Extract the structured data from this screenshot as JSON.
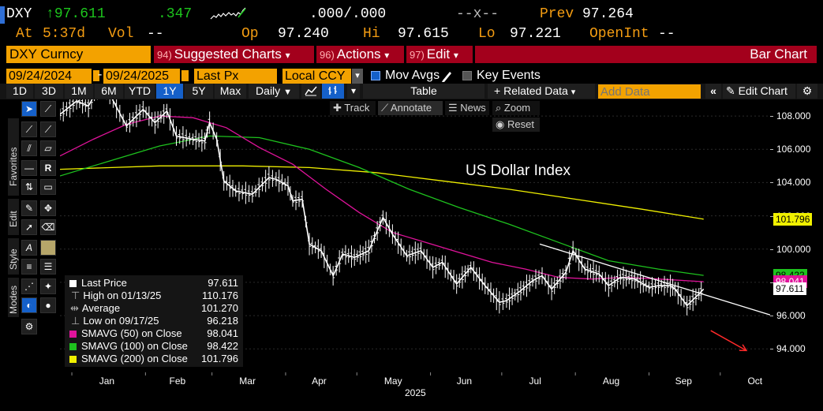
{
  "header": {
    "ticker": "DXY",
    "arrow": "↑",
    "last": "97.611",
    "change": ".347",
    "bid": ".000",
    "ask": ".000",
    "sep": "/",
    "mid": "--x--",
    "prev_label": "Prev",
    "prev": "97.264",
    "at_label": "At",
    "time": "5:37d",
    "vol_label": "Vol",
    "vol": "--",
    "op_label": "Op",
    "op": "97.240",
    "hi_label": "Hi",
    "hi": "97.615",
    "lo_label": "Lo",
    "lo": "97.221",
    "oi_label": "OpenInt",
    "oi": "--"
  },
  "commandbar": {
    "security": "DXY Curncy",
    "suggested_num": "94)",
    "suggested": "Suggested Charts",
    "actions_num": "96)",
    "actions": "Actions",
    "edit_num": "97)",
    "edit": "Edit",
    "chart_type": "Bar Chart",
    "caret": "▾"
  },
  "settings": {
    "start_date": "09/24/2024",
    "dash": "-",
    "end_date": "09/24/2025",
    "field": "Last Px",
    "currency": "Local CCY",
    "mov_avgs": "Mov Avgs",
    "key_events": "Key Events"
  },
  "toolbar": {
    "ranges": [
      "1D",
      "3D",
      "1M",
      "6M",
      "YTD",
      "1Y",
      "5Y",
      "Max"
    ],
    "selected_range": "1Y",
    "period": "Daily",
    "table": "Table",
    "related": "Related Data",
    "add_data_placeholder": "Add Data",
    "edit_chart": "Edit Chart"
  },
  "chart_controls": {
    "track": "Track",
    "annotate": "Annotate",
    "news": "News",
    "zoom": "Zoom",
    "reset": "Reset"
  },
  "sidebar": {
    "favorites": "Favorites",
    "edit": "Edit",
    "style": "Style",
    "modes": "Modes"
  },
  "legend": [
    {
      "label": "Last Price",
      "value": "97.611",
      "color": "#ffffff"
    },
    {
      "label": "High on 01/13/25",
      "value": "110.176",
      "color": ""
    },
    {
      "label": "Average",
      "value": "101.270",
      "color": ""
    },
    {
      "label": "Low on 09/17/25",
      "value": "96.218",
      "color": ""
    },
    {
      "label": "SMAVG (50)  on Close",
      "value": "98.041",
      "color": "#e0139b"
    },
    {
      "label": "SMAVG (100)  on Close",
      "value": "98.422",
      "color": "#1ec21e"
    },
    {
      "label": "SMAVG (200)  on Close",
      "value": "101.796",
      "color": "#f0f000"
    }
  ],
  "chart_data": {
    "type": "line",
    "title": "US Dollar Index",
    "year_label": "2025",
    "x_labels": [
      "Jan",
      "Feb",
      "Mar",
      "Apr",
      "May",
      "Jun",
      "Jul",
      "Aug",
      "Sep",
      "Oct"
    ],
    "y_ticks": [
      "108.000",
      "106.000",
      "104.000",
      "102.000",
      "100.000",
      "98.000",
      "96.000",
      "94.000"
    ],
    "ylim": [
      92.4,
      109.0
    ],
    "right_tags": [
      {
        "text": "101.796",
        "value": 101.796,
        "bg": "#f0f000",
        "fg": "#000000"
      },
      {
        "text": "98.422",
        "value": 98.422,
        "bg": "#1ec21e",
        "fg": "#000000"
      },
      {
        "text": "98.041",
        "value": 98.041,
        "bg": "#e0139b",
        "fg": "#ffffff"
      },
      {
        "text": "97.611",
        "value": 97.611,
        "bg": "#ffffff",
        "fg": "#000000"
      }
    ],
    "series": [
      {
        "name": "Last Price",
        "color": "#ffffff",
        "points": [
          [
            "2024-12-27",
            108.1
          ],
          [
            "2025-01-03",
            108.9
          ],
          [
            "2025-01-08",
            108.6
          ],
          [
            "2025-01-13",
            109.9
          ],
          [
            "2025-01-17",
            109.3
          ],
          [
            "2025-01-24",
            107.4
          ],
          [
            "2025-01-31",
            108.4
          ],
          [
            "2025-02-05",
            107.6
          ],
          [
            "2025-02-10",
            108.3
          ],
          [
            "2025-02-14",
            106.8
          ],
          [
            "2025-02-21",
            106.6
          ],
          [
            "2025-02-26",
            106.5
          ],
          [
            "2025-02-28",
            107.6
          ],
          [
            "2025-03-03",
            106.6
          ],
          [
            "2025-03-06",
            104.1
          ],
          [
            "2025-03-11",
            103.5
          ],
          [
            "2025-03-18",
            103.3
          ],
          [
            "2025-03-25",
            104.3
          ],
          [
            "2025-03-28",
            104.2
          ],
          [
            "2025-04-02",
            103.8
          ],
          [
            "2025-04-04",
            102.9
          ],
          [
            "2025-04-08",
            103.0
          ],
          [
            "2025-04-11",
            100.3
          ],
          [
            "2025-04-16",
            99.9
          ],
          [
            "2025-04-21",
            98.4
          ],
          [
            "2025-04-25",
            99.7
          ],
          [
            "2025-04-30",
            99.5
          ],
          [
            "2025-05-06",
            99.9
          ],
          [
            "2025-05-12",
            101.9
          ],
          [
            "2025-05-16",
            100.9
          ],
          [
            "2025-05-22",
            99.6
          ],
          [
            "2025-05-28",
            99.9
          ],
          [
            "2025-06-02",
            98.9
          ],
          [
            "2025-06-06",
            99.2
          ],
          [
            "2025-06-12",
            97.9
          ],
          [
            "2025-06-18",
            98.9
          ],
          [
            "2025-06-24",
            97.8
          ],
          [
            "2025-06-30",
            96.8
          ],
          [
            "2025-07-03",
            96.9
          ],
          [
            "2025-07-09",
            97.5
          ],
          [
            "2025-07-14",
            98.1
          ],
          [
            "2025-07-18",
            98.4
          ],
          [
            "2025-07-22",
            97.6
          ],
          [
            "2025-07-28",
            98.6
          ],
          [
            "2025-07-31",
            99.9
          ],
          [
            "2025-08-05",
            98.8
          ],
          [
            "2025-08-11",
            98.5
          ],
          [
            "2025-08-15",
            97.8
          ],
          [
            "2025-08-20",
            98.3
          ],
          [
            "2025-08-26",
            98.2
          ],
          [
            "2025-09-01",
            97.7
          ],
          [
            "2025-09-05",
            97.8
          ],
          [
            "2025-09-10",
            97.8
          ],
          [
            "2025-09-12",
            97.6
          ],
          [
            "2025-09-17",
            96.6
          ],
          [
            "2025-09-22",
            97.3
          ],
          [
            "2025-09-24",
            97.6
          ]
        ]
      },
      {
        "name": "SMAVG (50)  on Close",
        "color": "#e0139b",
        "points": [
          [
            "2024-12-27",
            105.6
          ],
          [
            "2025-01-10",
            106.6
          ],
          [
            "2025-01-24",
            107.5
          ],
          [
            "2025-02-07",
            108.0
          ],
          [
            "2025-02-21",
            107.9
          ],
          [
            "2025-03-07",
            107.3
          ],
          [
            "2025-03-21",
            106.1
          ],
          [
            "2025-04-04",
            105.1
          ],
          [
            "2025-04-18",
            103.6
          ],
          [
            "2025-05-02",
            102.2
          ],
          [
            "2025-05-16",
            101.0
          ],
          [
            "2025-05-30",
            100.4
          ],
          [
            "2025-06-13",
            99.8
          ],
          [
            "2025-06-27",
            99.2
          ],
          [
            "2025-07-11",
            98.8
          ],
          [
            "2025-07-25",
            98.3
          ],
          [
            "2025-08-08",
            98.2
          ],
          [
            "2025-08-22",
            98.3
          ],
          [
            "2025-09-05",
            98.2
          ],
          [
            "2025-09-24",
            98.04
          ]
        ]
      },
      {
        "name": "SMAVG (100)  on Close",
        "color": "#1ec21e",
        "points": [
          [
            "2024-12-27",
            104.4
          ],
          [
            "2025-01-17",
            105.3
          ],
          [
            "2025-02-07",
            106.2
          ],
          [
            "2025-02-28",
            106.8
          ],
          [
            "2025-03-21",
            106.7
          ],
          [
            "2025-04-11",
            106.0
          ],
          [
            "2025-05-02",
            104.9
          ],
          [
            "2025-05-23",
            103.6
          ],
          [
            "2025-06-13",
            102.5
          ],
          [
            "2025-07-04",
            101.5
          ],
          [
            "2025-07-25",
            100.4
          ],
          [
            "2025-08-15",
            99.3
          ],
          [
            "2025-09-05",
            98.8
          ],
          [
            "2025-09-24",
            98.42
          ]
        ]
      },
      {
        "name": "SMAVG (200)  on Close",
        "color": "#f0f000",
        "points": [
          [
            "2024-12-27",
            104.8
          ],
          [
            "2025-02-07",
            105.0
          ],
          [
            "2025-03-14",
            105.0
          ],
          [
            "2025-04-11",
            104.9
          ],
          [
            "2025-05-09",
            104.6
          ],
          [
            "2025-06-06",
            104.1
          ],
          [
            "2025-07-04",
            103.6
          ],
          [
            "2025-08-01",
            103.0
          ],
          [
            "2025-08-29",
            102.4
          ],
          [
            "2025-09-24",
            101.8
          ]
        ]
      }
    ],
    "trendline": {
      "color": "#ffffff",
      "from": [
        "2025-07-17",
        100.3
      ],
      "to": [
        "2025-10-23",
        96.0
      ]
    },
    "arrow": {
      "color": "#ff2a2a",
      "from": [
        "2025-09-27",
        95.1
      ],
      "to": [
        "2025-10-12",
        93.9
      ]
    }
  }
}
